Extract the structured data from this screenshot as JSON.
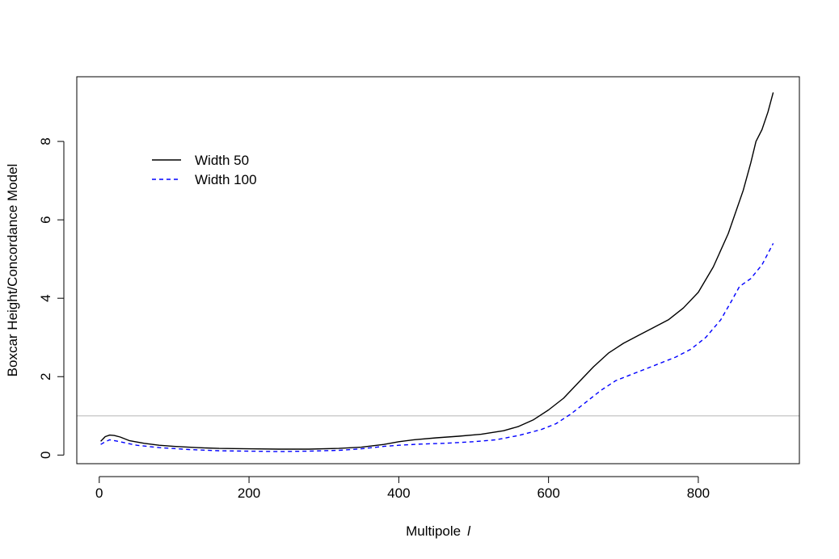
{
  "chart_data": {
    "type": "line",
    "title": "",
    "xlabel": "Multipole",
    "xlabel_symbol": "l",
    "ylabel": "Boxcar Height/Concordance Model",
    "xlim": [
      -30,
      935
    ],
    "ylim": [
      -0.22,
      9.65
    ],
    "xticks": [
      0,
      200,
      400,
      600,
      800
    ],
    "yticks": [
      0,
      2,
      4,
      6,
      8
    ],
    "grid": false,
    "legend_position": "top-left",
    "reference_line": {
      "y": 1,
      "color": "#bebebe"
    },
    "series": [
      {
        "name": "Width 50",
        "color": "#000000",
        "style": "solid",
        "points": [
          [
            2,
            0.35
          ],
          [
            8,
            0.47
          ],
          [
            14,
            0.51
          ],
          [
            20,
            0.5
          ],
          [
            28,
            0.46
          ],
          [
            40,
            0.37
          ],
          [
            60,
            0.3
          ],
          [
            80,
            0.25
          ],
          [
            100,
            0.22
          ],
          [
            130,
            0.19
          ],
          [
            160,
            0.17
          ],
          [
            200,
            0.16
          ],
          [
            240,
            0.15
          ],
          [
            280,
            0.15
          ],
          [
            320,
            0.17
          ],
          [
            350,
            0.2
          ],
          [
            380,
            0.27
          ],
          [
            400,
            0.34
          ],
          [
            420,
            0.39
          ],
          [
            450,
            0.44
          ],
          [
            480,
            0.48
          ],
          [
            510,
            0.53
          ],
          [
            540,
            0.62
          ],
          [
            560,
            0.73
          ],
          [
            580,
            0.9
          ],
          [
            600,
            1.15
          ],
          [
            620,
            1.45
          ],
          [
            640,
            1.85
          ],
          [
            660,
            2.25
          ],
          [
            680,
            2.6
          ],
          [
            700,
            2.85
          ],
          [
            720,
            3.05
          ],
          [
            740,
            3.25
          ],
          [
            760,
            3.45
          ],
          [
            780,
            3.75
          ],
          [
            800,
            4.15
          ],
          [
            820,
            4.8
          ],
          [
            840,
            5.65
          ],
          [
            860,
            6.75
          ],
          [
            870,
            7.45
          ],
          [
            877,
            8.0
          ],
          [
            885,
            8.3
          ],
          [
            893,
            8.75
          ],
          [
            900,
            9.25
          ]
        ]
      },
      {
        "name": "Width 100",
        "color": "#0000ff",
        "style": "dashed",
        "points": [
          [
            2,
            0.27
          ],
          [
            8,
            0.34
          ],
          [
            14,
            0.39
          ],
          [
            20,
            0.37
          ],
          [
            30,
            0.33
          ],
          [
            50,
            0.25
          ],
          [
            80,
            0.19
          ],
          [
            120,
            0.14
          ],
          [
            160,
            0.11
          ],
          [
            200,
            0.1
          ],
          [
            240,
            0.09
          ],
          [
            280,
            0.1
          ],
          [
            320,
            0.12
          ],
          [
            350,
            0.16
          ],
          [
            380,
            0.22
          ],
          [
            400,
            0.25
          ],
          [
            430,
            0.28
          ],
          [
            460,
            0.3
          ],
          [
            500,
            0.34
          ],
          [
            530,
            0.39
          ],
          [
            560,
            0.5
          ],
          [
            590,
            0.65
          ],
          [
            610,
            0.8
          ],
          [
            630,
            1.05
          ],
          [
            650,
            1.35
          ],
          [
            670,
            1.65
          ],
          [
            690,
            1.9
          ],
          [
            710,
            2.05
          ],
          [
            730,
            2.2
          ],
          [
            750,
            2.35
          ],
          [
            770,
            2.5
          ],
          [
            790,
            2.7
          ],
          [
            810,
            3.0
          ],
          [
            830,
            3.45
          ],
          [
            845,
            3.95
          ],
          [
            855,
            4.3
          ],
          [
            870,
            4.5
          ],
          [
            885,
            4.85
          ],
          [
            900,
            5.4
          ]
        ]
      }
    ]
  }
}
